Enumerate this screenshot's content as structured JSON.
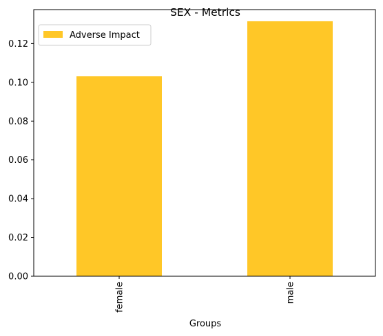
{
  "chart_data": {
    "type": "bar",
    "title": "SEX - Metrics",
    "xlabel": "Groups",
    "ylabel": "",
    "categories": [
      "female",
      "male"
    ],
    "series": [
      {
        "name": "Adverse Impact",
        "values": [
          0.1031,
          0.1315
        ],
        "color": "#ffc727"
      }
    ],
    "ylim": [
      0,
      0.1375
    ],
    "yticks": [
      0.0,
      0.02,
      0.04,
      0.06,
      0.08,
      0.1,
      0.12
    ],
    "ytick_labels": [
      "0.00",
      "0.02",
      "0.04",
      "0.06",
      "0.08",
      "0.10",
      "0.12"
    ],
    "legend_position": "top-left",
    "grid": false
  }
}
